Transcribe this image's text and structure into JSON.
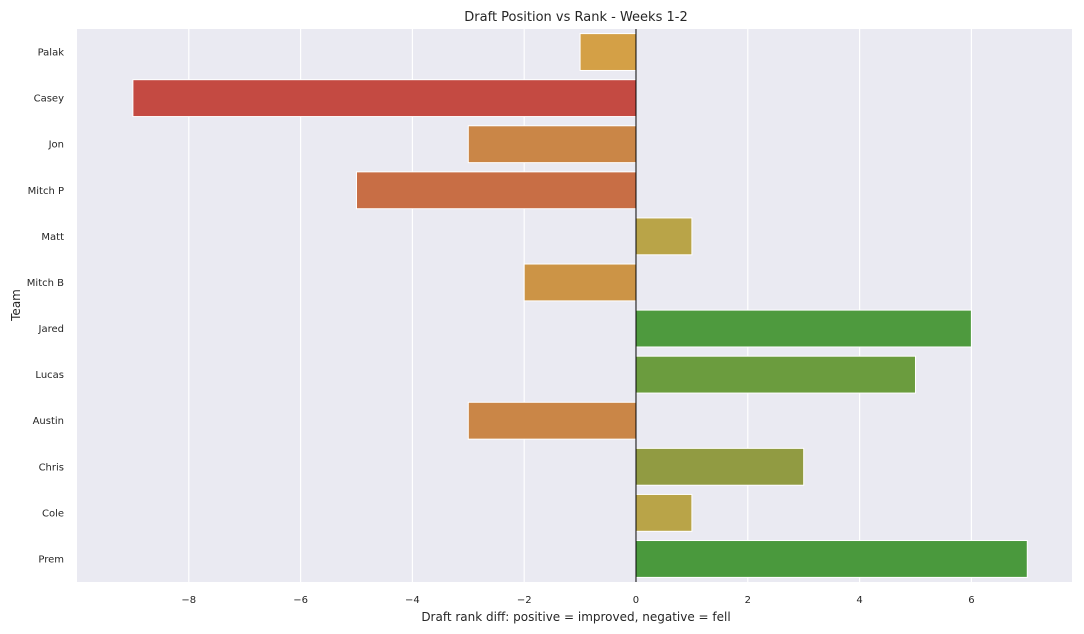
{
  "chart_data": {
    "type": "bar",
    "orientation": "horizontal",
    "title": "Draft Position vs Rank - Weeks 1-2",
    "xlabel": "Draft rank diff: positive = improved, negative = fell",
    "ylabel": "Team",
    "categories": [
      "Palak",
      "Casey",
      "Jon",
      "Mitch P",
      "Matt",
      "Mitch B",
      "Jared",
      "Lucas",
      "Austin",
      "Chris",
      "Cole",
      "Prem"
    ],
    "values": [
      -1,
      -9,
      -3,
      -5,
      1,
      -2,
      6,
      5,
      -3,
      3,
      1,
      7
    ],
    "colors": [
      "#d4a046",
      "#c44a42",
      "#ca8647",
      "#c86e45",
      "#b9a448",
      "#cc9446",
      "#4e9a3e",
      "#6b9c3e",
      "#ca8647",
      "#919b42",
      "#b9a448",
      "#4a993d"
    ],
    "xlim": [
      -10,
      7.8
    ],
    "xticks": [
      -8,
      -6,
      -4,
      -2,
      0,
      2,
      4,
      6
    ],
    "xtick_labels": [
      "−8",
      "−6",
      "−4",
      "−2",
      "0",
      "2",
      "4",
      "6"
    ],
    "grid": true,
    "background": "#eaeaf2",
    "zero_line": true
  }
}
